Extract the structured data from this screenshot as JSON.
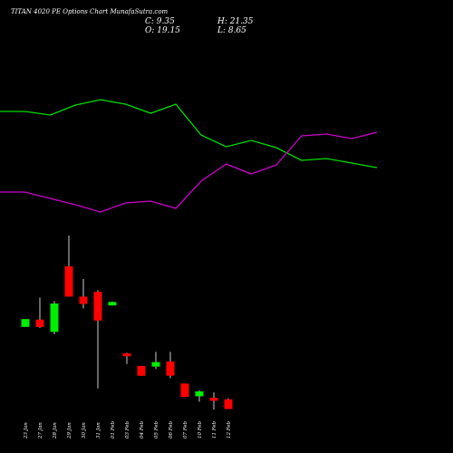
{
  "header": {
    "title": "TITAN 4020 PE Options Chart MunafaSutra.com",
    "close_label": "C: 9.35",
    "high_label": "H: 21.35",
    "open_label": "O: 19.15",
    "low_label": "L: 8.65"
  },
  "colors": {
    "background": "#000000",
    "up": "#00ee00",
    "down": "#ff0000",
    "wick": "#ffffff",
    "line_green": "#00dd00",
    "line_magenta": "#cc00cc",
    "text": "#ffffff"
  },
  "chart_data": [
    {
      "type": "line",
      "series": [
        {
          "color": "#00dd00",
          "values": [
            123,
            123,
            127,
            116,
            110,
            115,
            125,
            115,
            149,
            162,
            155,
            163,
            177,
            175,
            180,
            185
          ]
        },
        {
          "color": "#cc00cc",
          "values": [
            212,
            212,
            219,
            226,
            234,
            224,
            222,
            230,
            200,
            181,
            192,
            182,
            150,
            148,
            153,
            146
          ]
        }
      ]
    },
    {
      "type": "candlestick",
      "categories": [
        "23 Jan",
        "27 Jan",
        "28 Jan",
        "29 Jan",
        "30 Jan",
        "31 Jan",
        "01 Feb",
        "03 Feb",
        "04 Feb",
        "05 Feb",
        "06 Feb",
        "07 Feb",
        "10 Feb",
        "11 Feb",
        "12 Feb"
      ],
      "candles": [
        {
          "open": 44.0,
          "close": 45.6,
          "high": 45.6,
          "low": 44.0
        },
        {
          "open": 45.5,
          "close": 44.0,
          "high": 50.0,
          "low": 43.8
        },
        {
          "open": 43.0,
          "close": 48.8,
          "high": 49.3,
          "low": 42.5
        },
        {
          "open": 56.4,
          "close": 50.2,
          "high": 62.7,
          "low": 50.2
        },
        {
          "open": 50.2,
          "close": 48.7,
          "high": 53.8,
          "low": 47.8
        },
        {
          "open": 51.2,
          "close": 45.3,
          "high": 51.5,
          "low": 31.4
        },
        {
          "open": 48.4,
          "close": 49.1,
          "high": 49.2,
          "low": 48.4
        },
        {
          "open": 38.6,
          "close": 38.0,
          "high": 38.7,
          "low": 36.4
        },
        {
          "open": 36.0,
          "close": 34.0,
          "high": 36.0,
          "low": 34.0
        },
        {
          "open": 35.9,
          "close": 36.8,
          "high": 38.9,
          "low": 35.4
        },
        {
          "open": 36.9,
          "close": 34.0,
          "high": 38.9,
          "low": 33.5
        },
        {
          "open": 32.4,
          "close": 29.7,
          "high": 32.4,
          "low": 29.7
        },
        {
          "open": 29.8,
          "close": 30.8,
          "high": 31.0,
          "low": 28.7
        },
        {
          "open": 29.5,
          "close": 28.9,
          "high": 30.6,
          "low": 27.1
        },
        {
          "open": 29.2,
          "close": 27.2,
          "high": 29.4,
          "low": 27.2
        }
      ]
    }
  ]
}
